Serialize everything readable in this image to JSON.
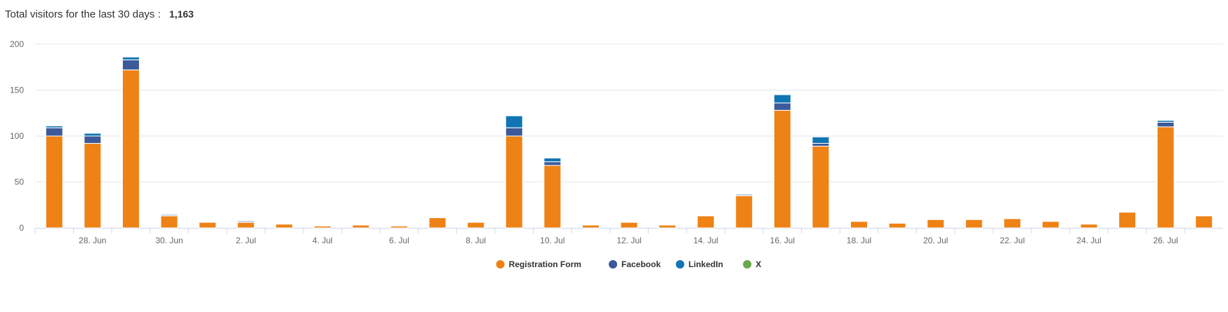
{
  "header": {
    "label": "Total visitors for the last 30 days :",
    "total": "1,163"
  },
  "colors": {
    "registration_form": "#ee8214",
    "facebook": "#3c5a9a",
    "linkedin": "#1175b4",
    "x": "#6aa84f"
  },
  "chart_data": {
    "type": "bar",
    "stacked": true,
    "title": "",
    "xlabel": "",
    "ylabel": "",
    "ylim": [
      0,
      200
    ],
    "yticks": [
      0,
      50,
      100,
      150,
      200
    ],
    "grid": true,
    "legend": "bottom-center",
    "categories": [
      "27 Jun",
      "28 Jun",
      "29 Jun",
      "30 Jun",
      "1 Jul",
      "2 Jul",
      "3 Jul",
      "4 Jul",
      "5 Jul",
      "6 Jul",
      "7 Jul",
      "8 Jul",
      "9 Jul",
      "10 Jul",
      "11 Jul",
      "12 Jul",
      "13 Jul",
      "14 Jul",
      "15 Jul",
      "16 Jul",
      "17 Jul",
      "18 Jul",
      "19 Jul",
      "20 Jul",
      "21 Jul",
      "22 Jul",
      "23 Jul",
      "24 Jul",
      "25 Jul",
      "26 Jul",
      "27 Jul"
    ],
    "tick_labels": [
      "28. Jun",
      "30. Jun",
      "2. Jul",
      "4. Jul",
      "6. Jul",
      "8. Jul",
      "10. Jul",
      "12. Jul",
      "14. Jul",
      "16. Jul",
      "18. Jul",
      "20. Jul",
      "22. Jul",
      "24. Jul",
      "26. Jul"
    ],
    "series": [
      {
        "name": "Registration Form",
        "color": "#ee8214",
        "values": [
          100,
          92,
          172,
          13,
          6,
          6,
          4,
          2,
          3,
          2,
          11,
          6,
          100,
          68,
          3,
          6,
          3,
          13,
          35,
          128,
          89,
          7,
          5,
          9,
          9,
          10,
          7,
          4,
          17,
          110,
          13
        ]
      },
      {
        "name": "Facebook",
        "color": "#3c5a9a",
        "values": [
          9,
          8,
          11,
          1,
          0,
          1,
          0,
          0,
          0,
          0,
          0,
          0,
          9,
          4,
          0,
          0,
          0,
          0,
          1,
          8,
          3,
          0,
          0,
          0,
          0,
          0,
          0,
          0,
          0,
          5,
          0
        ]
      },
      {
        "name": "LinkedIn",
        "color": "#1175b4",
        "values": [
          2,
          3,
          3,
          1,
          0,
          1,
          0,
          0,
          0,
          0,
          0,
          0,
          13,
          4,
          0,
          0,
          0,
          0,
          1,
          9,
          7,
          0,
          0,
          0,
          0,
          0,
          0,
          0,
          0,
          2,
          0
        ]
      },
      {
        "name": "X",
        "color": "#6aa84f",
        "values": [
          0,
          0,
          0,
          0,
          0,
          0,
          0,
          0,
          0,
          0,
          0,
          0,
          0,
          0,
          0,
          0,
          0,
          0,
          0,
          0,
          0,
          0,
          0,
          0,
          0,
          0,
          0,
          0,
          0,
          0,
          0
        ]
      }
    ]
  }
}
